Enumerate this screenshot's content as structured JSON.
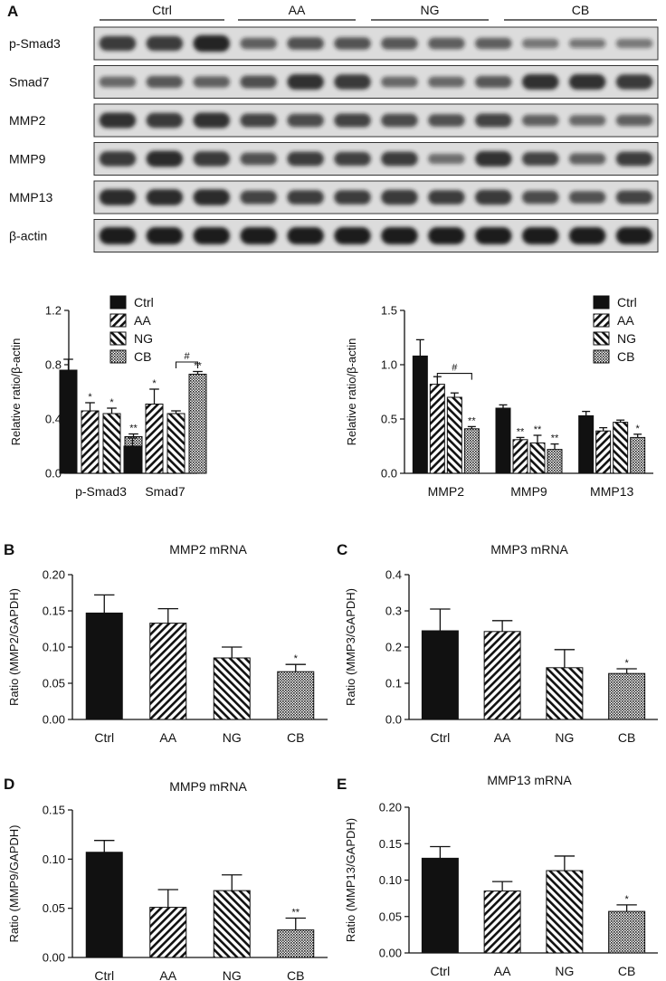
{
  "colors": {
    "ink": "#111111",
    "paper": "#ffffff",
    "blot_bg": "#dcdcdc",
    "band": "#1c1c1c"
  },
  "western": {
    "panel_label": "A",
    "groups": [
      "Ctrl",
      "AA",
      "NG",
      "CB"
    ],
    "rows": [
      {
        "label": "p-Smad3",
        "intensity": [
          0.78,
          0.78,
          0.95,
          0.5,
          0.6,
          0.58,
          0.55,
          0.52,
          0.5,
          0.35,
          0.3,
          0.33
        ]
      },
      {
        "label": "Smad7",
        "intensity": [
          0.45,
          0.55,
          0.5,
          0.62,
          0.85,
          0.8,
          0.45,
          0.45,
          0.55,
          0.85,
          0.85,
          0.8
        ]
      },
      {
        "label": "MMP2",
        "intensity": [
          0.85,
          0.8,
          0.85,
          0.7,
          0.65,
          0.7,
          0.65,
          0.6,
          0.7,
          0.5,
          0.45,
          0.5
        ]
      },
      {
        "label": "MMP9",
        "intensity": [
          0.8,
          0.9,
          0.8,
          0.6,
          0.75,
          0.72,
          0.75,
          0.4,
          0.85,
          0.7,
          0.5,
          0.75
        ]
      },
      {
        "label": "MMP13",
        "intensity": [
          0.9,
          0.9,
          0.9,
          0.7,
          0.75,
          0.75,
          0.8,
          0.75,
          0.8,
          0.65,
          0.6,
          0.7
        ]
      },
      {
        "label": "β-actin",
        "intensity": [
          1,
          1,
          1,
          1,
          1,
          1,
          1,
          1,
          1,
          1,
          1,
          1
        ]
      }
    ]
  },
  "legend": [
    "Ctrl",
    "AA",
    "NG",
    "CB"
  ],
  "chart_data": [
    {
      "type": "bar",
      "id": "A1",
      "panel_label": "",
      "title": "",
      "ylabel": "Relative ratio/β-actin",
      "ylim": [
        0,
        1.2
      ],
      "yticks": [
        "0.0",
        "0.4",
        "0.8",
        "1.2"
      ],
      "categories": [
        "p-Smad3",
        "Smad7"
      ],
      "series": [
        {
          "name": "Ctrl",
          "pattern": "solid",
          "values": [
            0.76,
            0.2
          ],
          "errors": [
            0.08,
            0.06
          ],
          "sig": [
            "",
            ""
          ]
        },
        {
          "name": "AA",
          "pattern": "hatch-back",
          "values": [
            0.46,
            0.51
          ],
          "errors": [
            0.06,
            0.11
          ],
          "sig": [
            "*",
            "*"
          ]
        },
        {
          "name": "NG",
          "pattern": "hatch-fwd",
          "values": [
            0.44,
            0.44
          ],
          "errors": [
            0.04,
            0.02
          ],
          "sig": [
            "*",
            ""
          ]
        },
        {
          "name": "CB",
          "pattern": "dots",
          "values": [
            0.27,
            0.73
          ],
          "errors": [
            0.02,
            0.02
          ],
          "sig": [
            "**",
            "**"
          ]
        }
      ],
      "bracket": {
        "category": 1,
        "from": 2,
        "to": 3,
        "y": 0.82,
        "label": "#"
      }
    },
    {
      "type": "bar",
      "id": "A2",
      "panel_label": "",
      "title": "",
      "ylabel": "Relative ratio/β-actin",
      "ylim": [
        0,
        1.5
      ],
      "yticks": [
        "0.0",
        "0.5",
        "1.0",
        "1.5"
      ],
      "categories": [
        "MMP2",
        "MMP9",
        "MMP13"
      ],
      "series": [
        {
          "name": "Ctrl",
          "pattern": "solid",
          "values": [
            1.08,
            0.6,
            0.53
          ],
          "errors": [
            0.15,
            0.03,
            0.04
          ],
          "sig": [
            "",
            "",
            ""
          ]
        },
        {
          "name": "AA",
          "pattern": "hatch-back",
          "values": [
            0.82,
            0.31,
            0.39
          ],
          "errors": [
            0.07,
            0.02,
            0.03
          ],
          "sig": [
            "",
            "**",
            ""
          ]
        },
        {
          "name": "NG",
          "pattern": "hatch-fwd",
          "values": [
            0.7,
            0.28,
            0.47
          ],
          "errors": [
            0.04,
            0.07,
            0.02
          ],
          "sig": [
            "",
            "**",
            ""
          ]
        },
        {
          "name": "CB",
          "pattern": "dots",
          "values": [
            0.41,
            0.22,
            0.33
          ],
          "errors": [
            0.02,
            0.05,
            0.03
          ],
          "sig": [
            "**",
            "**",
            "*"
          ]
        }
      ],
      "bracket": {
        "category": 0,
        "from": 1,
        "to": 3,
        "y": 0.92,
        "label": "#"
      }
    },
    {
      "type": "bar",
      "id": "B",
      "panel_label": "B",
      "title": "MMP2 mRNA",
      "ylabel": "Ratio (MMP2/GAPDH)",
      "ylim": [
        0,
        0.2
      ],
      "yticks": [
        "0.00",
        "0.05",
        "0.10",
        "0.15",
        "0.20"
      ],
      "categories": [
        "Ctrl",
        "AA",
        "NG",
        "CB"
      ],
      "patterns": [
        "solid",
        "hatch-back",
        "hatch-fwd",
        "dots"
      ],
      "values": [
        0.147,
        0.133,
        0.085,
        0.066
      ],
      "errors": [
        0.025,
        0.02,
        0.015,
        0.01
      ],
      "sig": [
        "",
        "",
        "",
        "*"
      ]
    },
    {
      "type": "bar",
      "id": "C",
      "panel_label": "C",
      "title": "MMP3 mRNA",
      "ylabel": "Ratio (MMP3/GAPDH)",
      "ylim": [
        0,
        0.4
      ],
      "yticks": [
        "0.0",
        "0.1",
        "0.2",
        "0.3",
        "0.4"
      ],
      "categories": [
        "Ctrl",
        "AA",
        "NG",
        "CB"
      ],
      "patterns": [
        "solid",
        "hatch-back",
        "hatch-fwd",
        "dots"
      ],
      "values": [
        0.245,
        0.243,
        0.143,
        0.127
      ],
      "errors": [
        0.06,
        0.03,
        0.05,
        0.013
      ],
      "sig": [
        "",
        "",
        "",
        "*"
      ]
    },
    {
      "type": "bar",
      "id": "D",
      "panel_label": "D",
      "title": "MMP9 mRNA",
      "ylabel": "Ratio (MMP9/GAPDH)",
      "ylim": [
        0,
        0.15
      ],
      "yticks": [
        "0.00",
        "0.05",
        "0.10",
        "0.15"
      ],
      "categories": [
        "Ctrl",
        "AA",
        "NG",
        "CB"
      ],
      "patterns": [
        "solid",
        "hatch-back",
        "hatch-fwd",
        "dots"
      ],
      "values": [
        0.107,
        0.051,
        0.068,
        0.028
      ],
      "errors": [
        0.012,
        0.018,
        0.016,
        0.012
      ],
      "sig": [
        "",
        "",
        "",
        "**"
      ]
    },
    {
      "type": "bar",
      "id": "E",
      "panel_label": "E",
      "title": "MMP13 mRNA",
      "ylabel": "Ratio (MMP13/GAPDH)",
      "ylim": [
        0,
        0.2
      ],
      "yticks": [
        "0.00",
        "0.05",
        "0.10",
        "0.15",
        "0.20"
      ],
      "categories": [
        "Ctrl",
        "AA",
        "NG",
        "CB"
      ],
      "patterns": [
        "solid",
        "hatch-back",
        "hatch-fwd",
        "dots"
      ],
      "values": [
        0.13,
        0.085,
        0.113,
        0.057
      ],
      "errors": [
        0.016,
        0.013,
        0.02,
        0.009
      ],
      "sig": [
        "",
        "",
        "",
        "*"
      ]
    }
  ]
}
